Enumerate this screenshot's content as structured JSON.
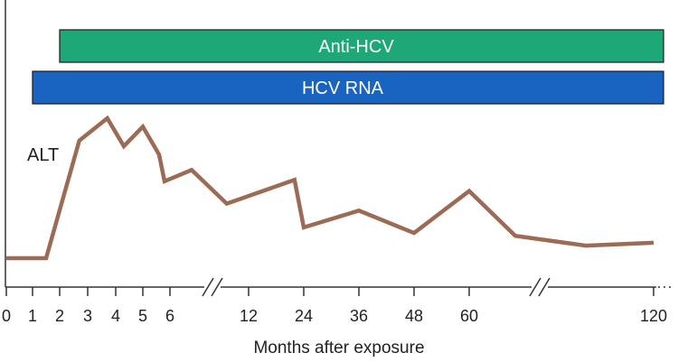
{
  "chart_data": {
    "type": "line",
    "title": "",
    "xlabel": "Months after exposure",
    "ylabel": "",
    "x_ticks": [
      "0",
      "1",
      "2",
      "3",
      "4",
      "5",
      "6",
      "12",
      "24",
      "36",
      "48",
      "60",
      "120"
    ],
    "axis_breaks_after": [
      "6",
      "60"
    ],
    "bars": [
      {
        "name": "Anti-HCV",
        "start": "2",
        "end": "120+",
        "color": "#1ea777"
      },
      {
        "name": "HCV  RNA",
        "start": "1",
        "end": "120+",
        "color": "#1964c0"
      }
    ],
    "series": [
      {
        "name": "ALT",
        "color": "#9b6b55",
        "note": "relative level, no y-axis scale shown",
        "points": [
          {
            "x": "0",
            "y": 0.0
          },
          {
            "x": "1.5",
            "y": 0.0
          },
          {
            "x": "2.7",
            "y": 0.84
          },
          {
            "x": "3.7",
            "y": 1.0
          },
          {
            "x": "4.3",
            "y": 0.8
          },
          {
            "x": "5",
            "y": 0.94
          },
          {
            "x": "5.6",
            "y": 0.74
          },
          {
            "x": "5.8",
            "y": 0.55
          },
          {
            "x": "6.8",
            "y": 0.63
          },
          {
            "x": "~10",
            "y": 0.39
          },
          {
            "x": "~22",
            "y": 0.56
          },
          {
            "x": "~24",
            "y": 0.22
          },
          {
            "x": "~36",
            "y": 0.34
          },
          {
            "x": "~48",
            "y": 0.18
          },
          {
            "x": "~60",
            "y": 0.48
          },
          {
            "x": "~72",
            "y": 0.16
          },
          {
            "x": "~96",
            "y": 0.09
          },
          {
            "x": "~120",
            "y": 0.11
          }
        ]
      }
    ],
    "grid": false
  }
}
